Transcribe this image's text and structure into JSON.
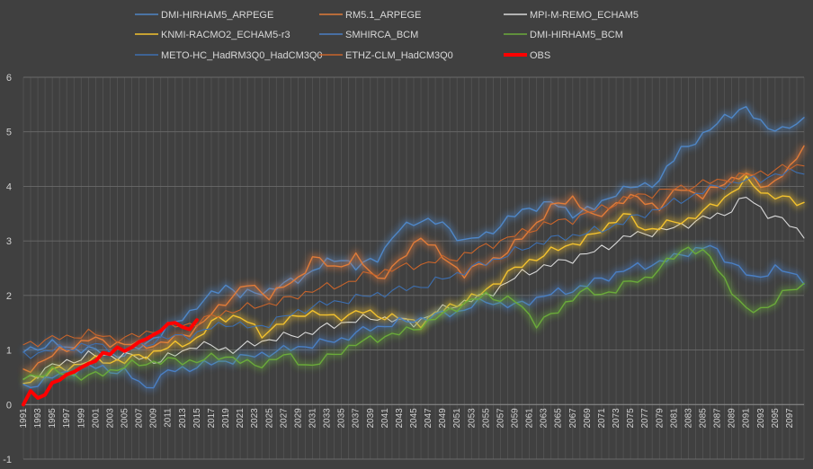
{
  "chart_data": {
    "type": "line",
    "title": "",
    "xlabel": "",
    "ylabel": "",
    "ylim": [
      -1,
      6
    ],
    "yticks": [
      -1,
      0,
      1,
      2,
      3,
      4,
      5,
      6
    ],
    "xlim": [
      1991,
      2099
    ],
    "xtick_labels": [
      "1991",
      "1993",
      "1995",
      "1997",
      "1999",
      "2001",
      "2003",
      "2005",
      "2007",
      "2009",
      "2011",
      "2013",
      "2015",
      "2017",
      "2019",
      "2021",
      "2023",
      "2025",
      "2027",
      "2029",
      "2031",
      "2033",
      "2035",
      "2037",
      "2039",
      "2041",
      "2043",
      "2045",
      "2047",
      "2049",
      "2051",
      "2053",
      "2055",
      "2057",
      "2059",
      "2061",
      "2063",
      "2065",
      "2067",
      "2069",
      "2071",
      "2073",
      "2075",
      "2077",
      "2079",
      "2081",
      "2083",
      "2085",
      "2087",
      "2089",
      "2091",
      "2093",
      "2095",
      "2097"
    ],
    "grid": true,
    "legend_position": "top",
    "series": [
      {
        "name": "DMI-HIRHAM5_ARPEGE",
        "color": "#4f86c6",
        "glow": true,
        "width": 1.4,
        "points": [
          [
            1991,
            1.0
          ],
          [
            1995,
            1.1
          ],
          [
            2000,
            1.0
          ],
          [
            2005,
            0.9
          ],
          [
            2010,
            1.3
          ],
          [
            2015,
            1.8
          ],
          [
            2019,
            2.2
          ],
          [
            2021,
            2.0
          ],
          [
            2025,
            2.1
          ],
          [
            2029,
            2.3
          ],
          [
            2033,
            2.6
          ],
          [
            2035,
            2.7
          ],
          [
            2037,
            2.5
          ],
          [
            2040,
            2.7
          ],
          [
            2043,
            3.2
          ],
          [
            2046,
            3.4
          ],
          [
            2049,
            3.3
          ],
          [
            2052,
            3.0
          ],
          [
            2055,
            3.1
          ],
          [
            2058,
            3.4
          ],
          [
            2061,
            3.6
          ],
          [
            2064,
            3.7
          ],
          [
            2067,
            3.5
          ],
          [
            2070,
            3.6
          ],
          [
            2073,
            3.9
          ],
          [
            2076,
            4.0
          ],
          [
            2079,
            4.1
          ],
          [
            2082,
            4.7
          ],
          [
            2085,
            4.9
          ],
          [
            2088,
            5.3
          ],
          [
            2091,
            5.4
          ],
          [
            2094,
            5.1
          ],
          [
            2096,
            5.0
          ],
          [
            2099,
            5.25
          ]
        ]
      },
      {
        "name": "RM5.1_ARPEGE",
        "color": "#e07b39",
        "glow": true,
        "width": 1.4,
        "points": [
          [
            1991,
            0.6
          ],
          [
            1995,
            0.9
          ],
          [
            2000,
            1.2
          ],
          [
            2005,
            1.1
          ],
          [
            2010,
            1.1
          ],
          [
            2015,
            1.4
          ],
          [
            2019,
            1.9
          ],
          [
            2022,
            2.2
          ],
          [
            2025,
            2.0
          ],
          [
            2029,
            2.3
          ],
          [
            2031,
            2.7
          ],
          [
            2034,
            2.5
          ],
          [
            2037,
            2.7
          ],
          [
            2040,
            2.3
          ],
          [
            2043,
            2.6
          ],
          [
            2046,
            3.1
          ],
          [
            2049,
            2.7
          ],
          [
            2052,
            2.4
          ],
          [
            2055,
            2.6
          ],
          [
            2058,
            2.8
          ],
          [
            2061,
            3.2
          ],
          [
            2064,
            3.6
          ],
          [
            2067,
            3.8
          ],
          [
            2070,
            3.4
          ],
          [
            2073,
            3.7
          ],
          [
            2076,
            3.8
          ],
          [
            2079,
            3.6
          ],
          [
            2082,
            4.0
          ],
          [
            2085,
            3.8
          ],
          [
            2088,
            4.1
          ],
          [
            2091,
            4.2
          ],
          [
            2094,
            4.0
          ],
          [
            2097,
            4.3
          ],
          [
            2099,
            4.8
          ]
        ]
      },
      {
        "name": "MPI-M-REMO_ECHAM5",
        "color": "#d9d9d9",
        "glow": false,
        "width": 1.1,
        "points": [
          [
            1991,
            0.45
          ],
          [
            1995,
            0.7
          ],
          [
            2000,
            0.9
          ],
          [
            2005,
            0.9
          ],
          [
            2010,
            0.8
          ],
          [
            2015,
            1.1
          ],
          [
            2020,
            1.0
          ],
          [
            2025,
            1.2
          ],
          [
            2030,
            1.3
          ],
          [
            2035,
            1.5
          ],
          [
            2040,
            1.6
          ],
          [
            2045,
            1.5
          ],
          [
            2050,
            1.8
          ],
          [
            2055,
            2.0
          ],
          [
            2060,
            2.4
          ],
          [
            2065,
            2.6
          ],
          [
            2070,
            2.8
          ],
          [
            2075,
            3.1
          ],
          [
            2080,
            3.2
          ],
          [
            2085,
            3.4
          ],
          [
            2088,
            3.5
          ],
          [
            2091,
            3.8
          ],
          [
            2094,
            3.5
          ],
          [
            2097,
            3.3
          ],
          [
            2099,
            3.1
          ]
        ]
      },
      {
        "name": "KNMI-RACMO2_ECHAM5-r3",
        "color": "#f2c12e",
        "glow": true,
        "width": 1.4,
        "points": [
          [
            1991,
            0.4
          ],
          [
            1995,
            0.6
          ],
          [
            2000,
            0.8
          ],
          [
            2005,
            0.8
          ],
          [
            2010,
            1.0
          ],
          [
            2015,
            1.2
          ],
          [
            2018,
            1.6
          ],
          [
            2021,
            1.6
          ],
          [
            2024,
            1.3
          ],
          [
            2027,
            1.5
          ],
          [
            2030,
            1.7
          ],
          [
            2034,
            1.6
          ],
          [
            2038,
            1.7
          ],
          [
            2042,
            1.6
          ],
          [
            2046,
            1.5
          ],
          [
            2050,
            1.8
          ],
          [
            2054,
            2.0
          ],
          [
            2058,
            2.4
          ],
          [
            2062,
            2.7
          ],
          [
            2066,
            2.9
          ],
          [
            2070,
            3.1
          ],
          [
            2074,
            3.5
          ],
          [
            2077,
            3.2
          ],
          [
            2080,
            3.3
          ],
          [
            2083,
            3.4
          ],
          [
            2086,
            3.6
          ],
          [
            2089,
            3.9
          ],
          [
            2091,
            4.1
          ],
          [
            2094,
            3.85
          ],
          [
            2097,
            3.75
          ],
          [
            2099,
            3.7
          ]
        ]
      },
      {
        "name": "SMHIRCA_BCM",
        "color": "#4a7fc4",
        "glow": true,
        "width": 1.4,
        "points": [
          [
            1991,
            0.3
          ],
          [
            1995,
            0.5
          ],
          [
            2000,
            0.7
          ],
          [
            2005,
            0.6
          ],
          [
            2008,
            0.3
          ],
          [
            2011,
            0.6
          ],
          [
            2015,
            0.7
          ],
          [
            2019,
            0.8
          ],
          [
            2023,
            0.9
          ],
          [
            2027,
            1.0
          ],
          [
            2031,
            1.1
          ],
          [
            2035,
            1.2
          ],
          [
            2039,
            1.4
          ],
          [
            2043,
            1.5
          ],
          [
            2047,
            1.6
          ],
          [
            2051,
            1.7
          ],
          [
            2055,
            1.9
          ],
          [
            2059,
            1.8
          ],
          [
            2063,
            2.0
          ],
          [
            2067,
            2.1
          ],
          [
            2071,
            2.3
          ],
          [
            2075,
            2.5
          ],
          [
            2079,
            2.6
          ],
          [
            2083,
            2.8
          ],
          [
            2086,
            2.9
          ],
          [
            2089,
            2.6
          ],
          [
            2092,
            2.3
          ],
          [
            2095,
            2.5
          ],
          [
            2099,
            2.3
          ]
        ]
      },
      {
        "name": "DMI-HIRHAM5_BCM",
        "color": "#6aaa3a",
        "glow": true,
        "width": 1.4,
        "points": [
          [
            1991,
            0.5
          ],
          [
            1995,
            0.6
          ],
          [
            2000,
            0.5
          ],
          [
            2005,
            0.7
          ],
          [
            2010,
            0.8
          ],
          [
            2015,
            0.8
          ],
          [
            2019,
            0.9
          ],
          [
            2023,
            0.7
          ],
          [
            2027,
            0.9
          ],
          [
            2031,
            0.7
          ],
          [
            2035,
            1.0
          ],
          [
            2039,
            1.2
          ],
          [
            2043,
            1.3
          ],
          [
            2047,
            1.5
          ],
          [
            2051,
            1.8
          ],
          [
            2055,
            2.0
          ],
          [
            2059,
            1.9
          ],
          [
            2062,
            1.5
          ],
          [
            2065,
            1.7
          ],
          [
            2068,
            2.1
          ],
          [
            2071,
            2.0
          ],
          [
            2074,
            2.2
          ],
          [
            2077,
            2.3
          ],
          [
            2080,
            2.6
          ],
          [
            2083,
            2.9
          ],
          [
            2086,
            2.7
          ],
          [
            2088,
            2.3
          ],
          [
            2091,
            1.7
          ],
          [
            2094,
            1.8
          ],
          [
            2097,
            2.1
          ],
          [
            2099,
            2.2
          ]
        ]
      },
      {
        "name": "METO-HC_HadRM3Q0_HadCM3Q0",
        "color": "#3d6fb0",
        "glow": false,
        "width": 1.1,
        "points": [
          [
            1991,
            0.9
          ],
          [
            1995,
            1.0
          ],
          [
            2000,
            1.1
          ],
          [
            2005,
            1.0
          ],
          [
            2010,
            1.2
          ],
          [
            2015,
            1.3
          ],
          [
            2019,
            1.5
          ],
          [
            2023,
            1.4
          ],
          [
            2027,
            1.6
          ],
          [
            2031,
            1.8
          ],
          [
            2035,
            1.9
          ],
          [
            2039,
            2.0
          ],
          [
            2043,
            2.1
          ],
          [
            2047,
            2.2
          ],
          [
            2051,
            2.4
          ],
          [
            2055,
            2.6
          ],
          [
            2059,
            2.8
          ],
          [
            2063,
            3.0
          ],
          [
            2067,
            3.1
          ],
          [
            2071,
            3.2
          ],
          [
            2075,
            3.4
          ],
          [
            2079,
            3.6
          ],
          [
            2083,
            3.8
          ],
          [
            2087,
            4.0
          ],
          [
            2091,
            4.1
          ],
          [
            2095,
            4.2
          ],
          [
            2099,
            4.3
          ]
        ]
      },
      {
        "name": "ETHZ-CLM_HadCM3Q0",
        "color": "#c8642b",
        "glow": false,
        "width": 1.1,
        "points": [
          [
            1991,
            1.1
          ],
          [
            1995,
            1.2
          ],
          [
            2000,
            1.3
          ],
          [
            2005,
            1.2
          ],
          [
            2010,
            1.4
          ],
          [
            2015,
            1.5
          ],
          [
            2019,
            1.7
          ],
          [
            2023,
            1.8
          ],
          [
            2027,
            1.9
          ],
          [
            2031,
            2.1
          ],
          [
            2035,
            2.2
          ],
          [
            2039,
            2.4
          ],
          [
            2043,
            2.5
          ],
          [
            2047,
            2.6
          ],
          [
            2051,
            2.7
          ],
          [
            2055,
            2.9
          ],
          [
            2059,
            3.1
          ],
          [
            2063,
            3.3
          ],
          [
            2067,
            3.4
          ],
          [
            2071,
            3.6
          ],
          [
            2075,
            3.8
          ],
          [
            2079,
            3.9
          ],
          [
            2083,
            4.0
          ],
          [
            2087,
            4.1
          ],
          [
            2091,
            4.2
          ],
          [
            2095,
            4.3
          ],
          [
            2099,
            4.4
          ]
        ]
      },
      {
        "name": "OBS",
        "color": "#ff0000",
        "glow": false,
        "width": 4,
        "points": [
          [
            1991,
            0.0
          ],
          [
            1992,
            0.25
          ],
          [
            1993,
            0.12
          ],
          [
            1994,
            0.18
          ],
          [
            1995,
            0.4
          ],
          [
            1996,
            0.45
          ],
          [
            1997,
            0.55
          ],
          [
            1998,
            0.6
          ],
          [
            1999,
            0.68
          ],
          [
            2000,
            0.75
          ],
          [
            2001,
            0.8
          ],
          [
            2002,
            0.95
          ],
          [
            2003,
            0.92
          ],
          [
            2004,
            1.05
          ],
          [
            2005,
            0.98
          ],
          [
            2006,
            1.05
          ],
          [
            2007,
            1.15
          ],
          [
            2008,
            1.2
          ],
          [
            2009,
            1.28
          ],
          [
            2010,
            1.35
          ],
          [
            2011,
            1.48
          ],
          [
            2012,
            1.5
          ],
          [
            2013,
            1.42
          ],
          [
            2014,
            1.38
          ],
          [
            2015,
            1.55
          ]
        ]
      }
    ]
  }
}
